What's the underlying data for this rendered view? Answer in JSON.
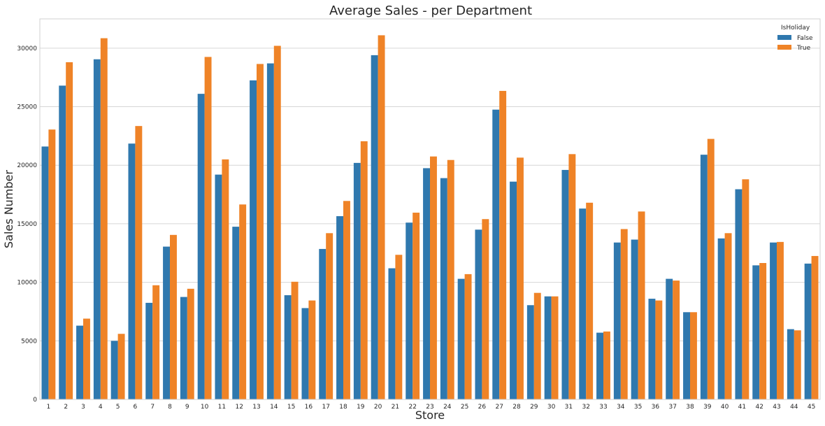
{
  "chart_data": {
    "type": "bar",
    "title": "Average Sales - per Department",
    "xlabel": "Store",
    "ylabel": "Sales Number",
    "ylim": [
      0,
      32500
    ],
    "yticks": [
      0,
      5000,
      10000,
      15000,
      20000,
      25000,
      30000
    ],
    "grid": true,
    "legend": {
      "title": "IsHoliday",
      "position": "top-right"
    },
    "categories": [
      "1",
      "2",
      "3",
      "4",
      "5",
      "6",
      "7",
      "8",
      "9",
      "10",
      "11",
      "12",
      "13",
      "14",
      "15",
      "16",
      "17",
      "18",
      "19",
      "20",
      "21",
      "22",
      "23",
      "24",
      "25",
      "26",
      "27",
      "28",
      "29",
      "30",
      "31",
      "32",
      "33",
      "34",
      "35",
      "36",
      "37",
      "38",
      "39",
      "40",
      "41",
      "42",
      "43",
      "44",
      "45"
    ],
    "series": [
      {
        "name": "False",
        "color": "#2f78ae",
        "values": [
          21600,
          26800,
          6300,
          29050,
          5000,
          21850,
          8250,
          13050,
          8750,
          26100,
          19200,
          14750,
          27250,
          28700,
          8900,
          7800,
          12850,
          15650,
          20200,
          29400,
          11200,
          15100,
          19750,
          18900,
          10300,
          14500,
          24750,
          18600,
          8050,
          8800,
          19600,
          16300,
          5700,
          13400,
          13650,
          8600,
          10300,
          7450,
          20900,
          13750,
          17950,
          11450,
          13400,
          6000,
          11600
        ]
      },
      {
        "name": "True",
        "color": "#ef8327",
        "values": [
          23050,
          28800,
          6900,
          30850,
          5600,
          23350,
          9750,
          14050,
          9450,
          29250,
          20500,
          16650,
          28650,
          30200,
          10050,
          8450,
          14200,
          16950,
          22050,
          31100,
          12350,
          15950,
          20750,
          20450,
          10700,
          15400,
          26350,
          20650,
          9100,
          8800,
          20950,
          16800,
          5800,
          14550,
          16050,
          8450,
          10150,
          7450,
          22250,
          14200,
          18800,
          11650,
          13450,
          5900,
          12250
        ]
      }
    ]
  }
}
